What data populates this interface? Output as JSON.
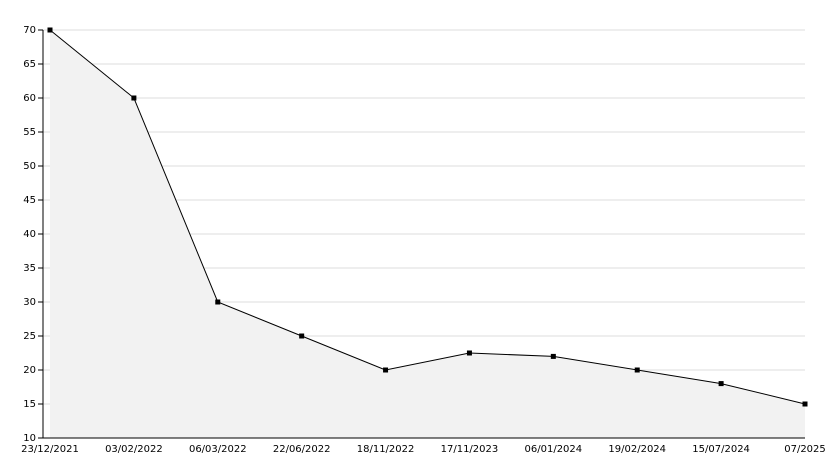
{
  "chart_data": {
    "type": "area",
    "categories": [
      "23/12/2021",
      "03/02/2022",
      "06/03/2022",
      "22/06/2022",
      "18/11/2022",
      "17/11/2023",
      "06/01/2024",
      "19/02/2024",
      "15/07/2024",
      "07/2025"
    ],
    "values": [
      70,
      60,
      30,
      25,
      20,
      22.5,
      22,
      20,
      18,
      15
    ],
    "color": "#000000",
    "fill": "#f2f2f2",
    "ylim": [
      10,
      70
    ],
    "yticks": [
      10,
      15,
      20,
      25,
      30,
      35,
      40,
      45,
      50,
      55,
      60,
      65,
      70
    ],
    "grid": true
  }
}
